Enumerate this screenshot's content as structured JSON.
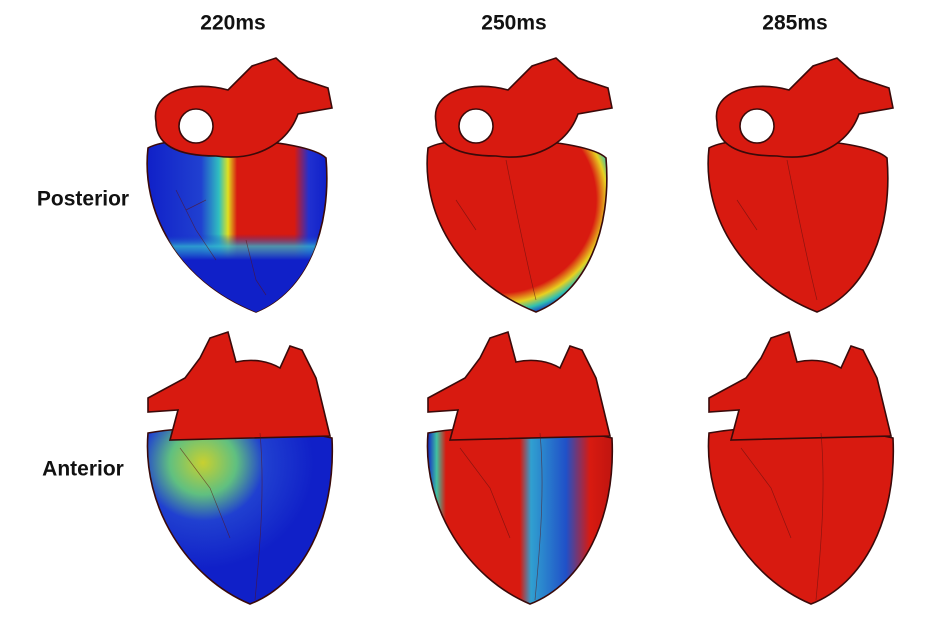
{
  "columns": [
    "220ms",
    "250ms",
    "285ms"
  ],
  "rows": [
    "Posterior",
    "Anterior"
  ]
}
